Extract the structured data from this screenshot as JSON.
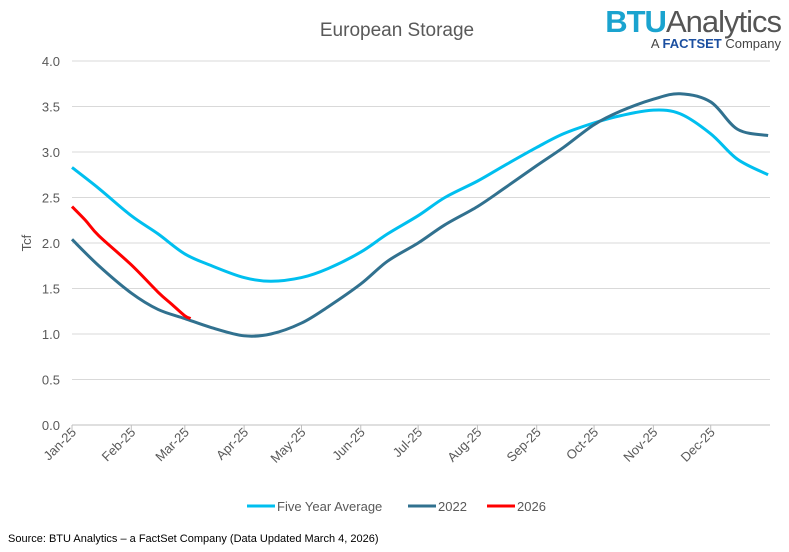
{
  "logo": {
    "brand_bold": "BTU",
    "brand_light": "Analytics",
    "tagline_pre": "A",
    "tagline_brand": "FACTSET",
    "tagline_post": "Company"
  },
  "source": "Source: BTU Analytics – a FactSet Company (Data Updated March 4, 2026)",
  "chart_data": {
    "type": "line",
    "title": "European Storage",
    "ylabel": "Tcf",
    "xlabel": "",
    "ylim": [
      0,
      4.0
    ],
    "yticks": [
      "0.0",
      "0.5",
      "1.0",
      "1.5",
      "2.0",
      "2.5",
      "3.0",
      "3.5",
      "4.0"
    ],
    "xticks": [
      "Jan-25",
      "Feb-25",
      "Mar-25",
      "Apr-25",
      "May-25",
      "Jun-25",
      "Jul-25",
      "Aug-25",
      "Sep-25",
      "Oct-25",
      "Nov-25",
      "Dec-25"
    ],
    "xlim": [
      "2025-01-01",
      "2025-12-31"
    ],
    "grid": "horizontal",
    "legend": "bottom",
    "series": [
      {
        "name": "Five Year Average",
        "color": "#00bfef",
        "points": [
          [
            "2025-01-01",
            2.83
          ],
          [
            "2025-01-15",
            2.6
          ],
          [
            "2025-02-01",
            2.3
          ],
          [
            "2025-02-15",
            2.1
          ],
          [
            "2025-03-01",
            1.88
          ],
          [
            "2025-03-15",
            1.75
          ],
          [
            "2025-04-01",
            1.62
          ],
          [
            "2025-04-15",
            1.58
          ],
          [
            "2025-05-01",
            1.62
          ],
          [
            "2025-05-15",
            1.72
          ],
          [
            "2025-06-01",
            1.9
          ],
          [
            "2025-06-15",
            2.1
          ],
          [
            "2025-07-01",
            2.3
          ],
          [
            "2025-07-15",
            2.5
          ],
          [
            "2025-08-01",
            2.68
          ],
          [
            "2025-08-15",
            2.85
          ],
          [
            "2025-09-01",
            3.05
          ],
          [
            "2025-09-15",
            3.2
          ],
          [
            "2025-10-01",
            3.32
          ],
          [
            "2025-10-15",
            3.4
          ],
          [
            "2025-11-01",
            3.46
          ],
          [
            "2025-11-15",
            3.42
          ],
          [
            "2025-12-01",
            3.2
          ],
          [
            "2025-12-15",
            2.92
          ],
          [
            "2025-12-31",
            2.75
          ]
        ]
      },
      {
        "name": "2022",
        "color": "#31718f",
        "points": [
          [
            "2025-01-01",
            2.04
          ],
          [
            "2025-01-15",
            1.75
          ],
          [
            "2025-02-01",
            1.45
          ],
          [
            "2025-02-15",
            1.27
          ],
          [
            "2025-03-01",
            1.17
          ],
          [
            "2025-03-15",
            1.07
          ],
          [
            "2025-04-01",
            0.98
          ],
          [
            "2025-04-15",
            1.0
          ],
          [
            "2025-05-01",
            1.12
          ],
          [
            "2025-05-15",
            1.3
          ],
          [
            "2025-06-01",
            1.55
          ],
          [
            "2025-06-15",
            1.8
          ],
          [
            "2025-07-01",
            2.0
          ],
          [
            "2025-07-15",
            2.2
          ],
          [
            "2025-08-01",
            2.4
          ],
          [
            "2025-08-15",
            2.6
          ],
          [
            "2025-09-01",
            2.85
          ],
          [
            "2025-09-15",
            3.05
          ],
          [
            "2025-10-01",
            3.3
          ],
          [
            "2025-10-15",
            3.45
          ],
          [
            "2025-11-01",
            3.58
          ],
          [
            "2025-11-15",
            3.64
          ],
          [
            "2025-12-01",
            3.55
          ],
          [
            "2025-12-15",
            3.25
          ],
          [
            "2025-12-31",
            3.18
          ]
        ]
      },
      {
        "name": "2026",
        "color": "#ff0000",
        "points": [
          [
            "2025-01-01",
            2.4
          ],
          [
            "2025-01-08",
            2.25
          ],
          [
            "2025-01-15",
            2.08
          ],
          [
            "2025-02-01",
            1.76
          ],
          [
            "2025-02-15",
            1.46
          ],
          [
            "2025-02-22",
            1.33
          ],
          [
            "2025-03-01",
            1.2
          ],
          [
            "2025-03-04",
            1.17
          ]
        ]
      }
    ]
  }
}
